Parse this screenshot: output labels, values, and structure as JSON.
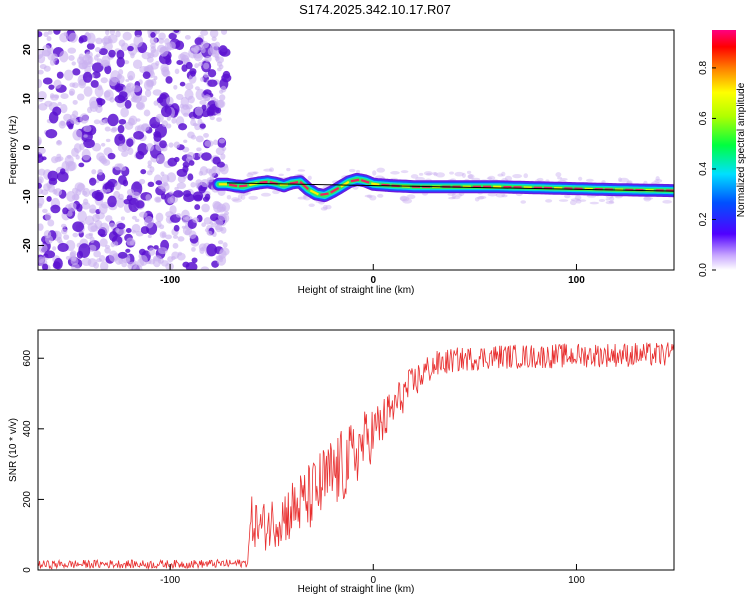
{
  "title": "S174.2025.342.10.17.R07",
  "colors": {
    "snr_line": "#e83030",
    "speckle_strong": "#5a10d0",
    "speckle_weak": "#c9b0f0",
    "fit_line": "#000000"
  },
  "chart_data": [
    {
      "type": "heatmap",
      "name": "spectrogram",
      "title": "S174.2025.342.10.17.R07",
      "xlabel": "Height of straight line (km)",
      "ylabel": "Frequency (Hz)",
      "xlim": [
        -165,
        148
      ],
      "ylim": [
        -25,
        24
      ],
      "xticks": [
        -100,
        0,
        100
      ],
      "xtick_labels": [
        "-100",
        "0",
        "100"
      ],
      "yticks": [
        -20,
        -10,
        0,
        10,
        20
      ],
      "ytick_labels": [
        "-20",
        "-10",
        "0",
        "10",
        "20"
      ],
      "noise_region_x": [
        -165,
        -72
      ],
      "signal_track": {
        "x": [
          -76,
          -72,
          -68,
          -64,
          -60,
          -56,
          -52,
          -48,
          -44,
          -40,
          -36,
          -32,
          -28,
          -24,
          -20,
          -16,
          -12,
          -8,
          -4,
          0,
          10,
          20,
          40,
          60,
          80,
          100,
          120,
          148
        ],
        "y": [
          -7.5,
          -7.5,
          -7.8,
          -8,
          -7.5,
          -7.2,
          -7,
          -7.3,
          -7.8,
          -7.2,
          -7,
          -8.5,
          -9.5,
          -9.8,
          -9,
          -8,
          -7,
          -6.5,
          -6.8,
          -7.5,
          -7.8,
          -8,
          -8,
          -8,
          -8.2,
          -8.4,
          -8.6,
          -8.8
        ]
      },
      "fit_line": {
        "x": [
          -72,
          148
        ],
        "y": [
          -7.2,
          -8.9
        ]
      },
      "colorbar": {
        "label": "Normalized spectral amplitude",
        "range": [
          0.0,
          0.95
        ],
        "ticks": [
          0.0,
          0.2,
          0.4,
          0.6,
          0.8
        ],
        "tick_labels": [
          "0.0",
          "0.2",
          "0.4",
          "0.6",
          "0.8"
        ]
      }
    },
    {
      "type": "line",
      "name": "snr",
      "xlabel": "Height of straight line (km)",
      "ylabel": "SNR (10 * v/v)",
      "xlim": [
        -165,
        148
      ],
      "ylim": [
        0,
        680
      ],
      "xticks": [
        -100,
        0,
        100
      ],
      "xtick_labels": [
        "-100",
        "0",
        "100"
      ],
      "yticks": [
        0,
        200,
        400,
        600
      ],
      "ytick_labels": [
        "0",
        "200",
        "400",
        "600"
      ],
      "series": [
        {
          "name": "SNR",
          "x": [
            -165,
            -150,
            -130,
            -110,
            -90,
            -70,
            -62,
            -60,
            -55,
            -50,
            -45,
            -40,
            -35,
            -30,
            -25,
            -20,
            -15,
            -10,
            -5,
            0,
            5,
            10,
            15,
            20,
            25,
            30,
            40,
            50,
            60,
            80,
            100,
            120,
            148
          ],
          "y": [
            15,
            16,
            17,
            16,
            17,
            18,
            20,
            140,
            120,
            135,
            150,
            170,
            190,
            210,
            240,
            270,
            290,
            320,
            360,
            390,
            420,
            460,
            500,
            530,
            560,
            580,
            595,
            600,
            605,
            605,
            608,
            610,
            610
          ],
          "noise_amplitude": [
            12,
            12,
            12,
            12,
            12,
            12,
            12,
            70,
            70,
            75,
            80,
            90,
            95,
            100,
            110,
            110,
            110,
            100,
            90,
            80,
            70,
            60,
            55,
            50,
            45,
            40,
            35,
            35,
            35,
            35,
            35,
            35,
            35
          ]
        }
      ]
    }
  ]
}
